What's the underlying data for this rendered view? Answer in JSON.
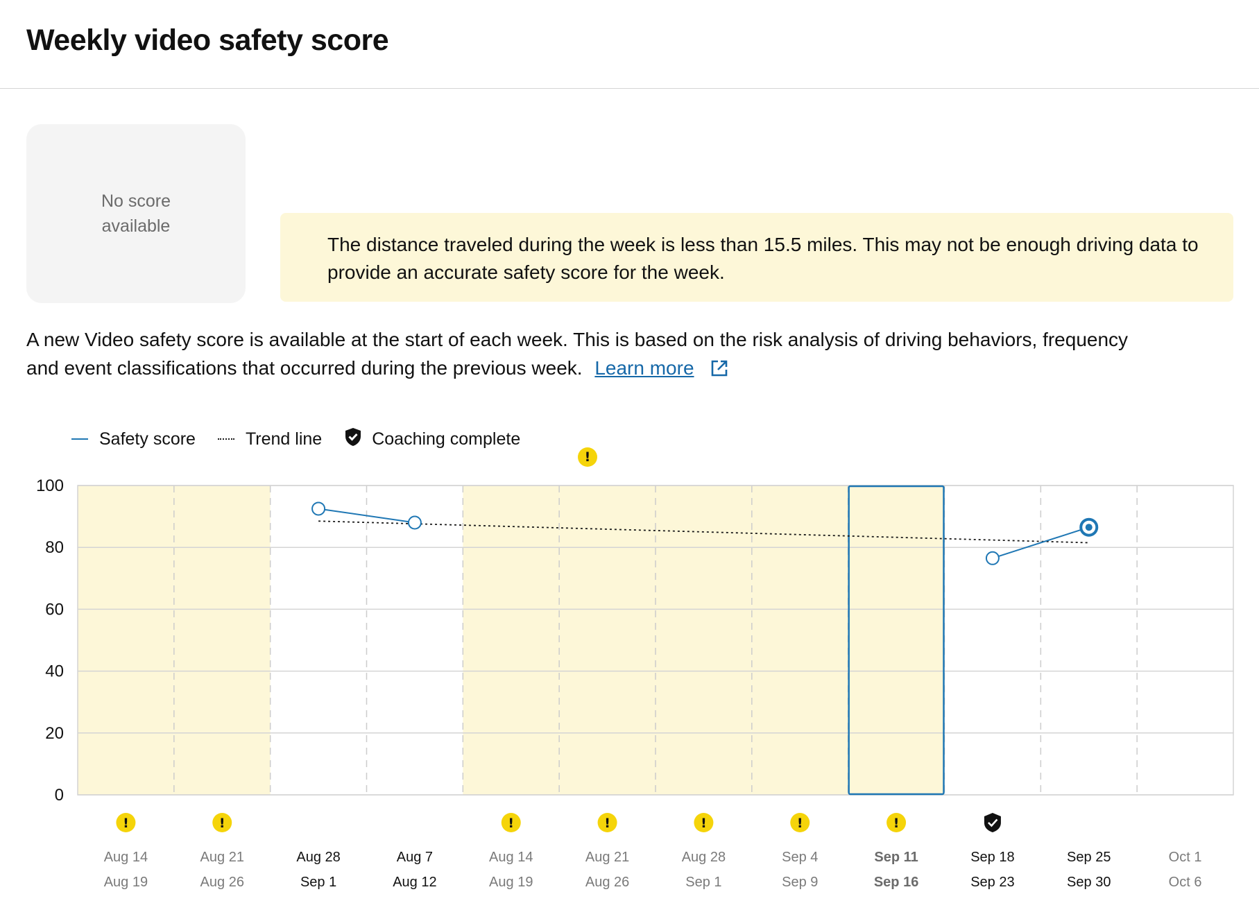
{
  "header": {
    "title": "Weekly video safety score"
  },
  "score_card": {
    "line1": "No score",
    "line2": "available"
  },
  "warning_banner": {
    "icon": "exclamation-circle-icon",
    "text": "The distance traveled during the week is less than 15.5 miles. This may not be enough driving data to provide an accurate safety score for the week."
  },
  "description": {
    "text": "A new Video safety score is available at the start of each week. This is based on the risk analysis of driving behaviors, frequency and event classifications that occurred during the previous week.",
    "link_label": "Learn more",
    "link_icon": "external-link-icon"
  },
  "legend": {
    "safety_score": "Safety score",
    "trend_line": "Trend line",
    "coaching_complete": "Coaching complete"
  },
  "colors": {
    "accent": "#1f77b4",
    "warning_fill": "#fdf7d8",
    "warning_icon": "#f5d40a",
    "grid": "#d4d4d4"
  },
  "chart_data": {
    "type": "line",
    "ylim": [
      0,
      100
    ],
    "yticks": [
      0,
      20,
      40,
      60,
      80,
      100
    ],
    "weeks": [
      {
        "start": "Aug 14",
        "end": "Aug 19",
        "score": null,
        "low_mileage": true,
        "coached": false,
        "muted": true,
        "selected": false
      },
      {
        "start": "Aug 21",
        "end": "Aug 26",
        "score": null,
        "low_mileage": true,
        "coached": false,
        "muted": true,
        "selected": false
      },
      {
        "start": "Aug 28",
        "end": "Sep 1",
        "score": 92.5,
        "low_mileage": false,
        "coached": false,
        "muted": false,
        "selected": false
      },
      {
        "start": "Aug 7",
        "end": "Aug 12",
        "score": 88,
        "low_mileage": false,
        "coached": false,
        "muted": false,
        "selected": false
      },
      {
        "start": "Aug 14",
        "end": "Aug 19",
        "score": null,
        "low_mileage": true,
        "coached": false,
        "muted": true,
        "selected": false
      },
      {
        "start": "Aug 21",
        "end": "Aug 26",
        "score": null,
        "low_mileage": true,
        "coached": false,
        "muted": true,
        "selected": false
      },
      {
        "start": "Aug 28",
        "end": "Sep 1",
        "score": null,
        "low_mileage": true,
        "coached": false,
        "muted": true,
        "selected": false
      },
      {
        "start": "Sep 4",
        "end": "Sep 9",
        "score": null,
        "low_mileage": true,
        "coached": false,
        "muted": true,
        "selected": false
      },
      {
        "start": "Sep 11",
        "end": "Sep 16",
        "score": null,
        "low_mileage": true,
        "coached": false,
        "muted": true,
        "selected": true
      },
      {
        "start": "Sep 18",
        "end": "Sep 23",
        "score": 76.5,
        "low_mileage": false,
        "coached": true,
        "muted": false,
        "selected": false
      },
      {
        "start": "Sep 25",
        "end": "Sep 30",
        "score": 86.5,
        "low_mileage": false,
        "coached": false,
        "muted": false,
        "selected": false,
        "latest": true
      },
      {
        "start": "Oct 1",
        "end": "Oct 6",
        "score": null,
        "low_mileage": false,
        "coached": false,
        "muted": true,
        "selected": false
      }
    ],
    "trend": {
      "start_week": 2,
      "start_value": 88.5,
      "end_week": 10,
      "end_value": 81.5
    },
    "grid": true,
    "legend_position": "top-left"
  }
}
